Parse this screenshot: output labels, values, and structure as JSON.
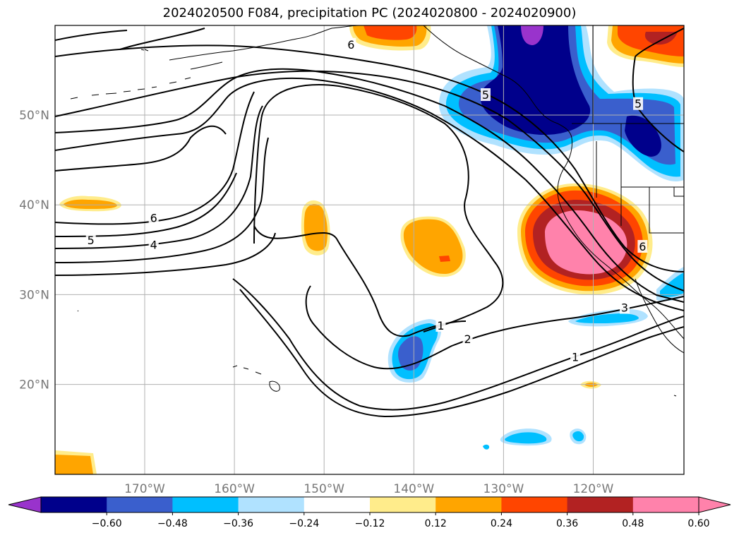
{
  "title": "2024020500 F084, precipitation PC (2024020800 - 2024020900)",
  "lat_labels": [
    {
      "label": "50°N",
      "lat": 50
    },
    {
      "label": "40°N",
      "lat": 40
    },
    {
      "label": "30°N",
      "lat": 30
    },
    {
      "label": "20°N",
      "lat": 20
    }
  ],
  "lon_labels": [
    {
      "label": "170°W",
      "lon": -170
    },
    {
      "label": "160°W",
      "lon": -160
    },
    {
      "label": "150°W",
      "lon": -150
    },
    {
      "label": "140°W",
      "lon": -140
    },
    {
      "label": "130°W",
      "lon": -130
    },
    {
      "label": "120°W",
      "lon": -120
    }
  ],
  "colorbar": {
    "colors": [
      "#9933cc",
      "#00008b",
      "#3a5fcd",
      "#00bfff",
      "#b0e2ff",
      "#ffffff",
      "#ffec8b",
      "#ffa500",
      "#ff4500",
      "#b22222",
      "#ff82ab",
      "#ff82ab"
    ],
    "tick_labels": [
      "−0.60",
      "−0.48",
      "−0.36",
      "−0.24",
      "−0.12",
      "0.12",
      "0.24",
      "0.36",
      "0.48",
      "0.60"
    ]
  },
  "contour_labels": [
    {
      "text": "6",
      "lon": -169,
      "lat": 38.5
    },
    {
      "text": "5",
      "lon": -176,
      "lat": 36
    },
    {
      "text": "4",
      "lon": -169,
      "lat": 35.5
    },
    {
      "text": "6",
      "lon": -147,
      "lat": 57.8
    },
    {
      "text": "5",
      "lon": -132,
      "lat": 52.2
    },
    {
      "text": "1",
      "lon": -137,
      "lat": 26.5
    },
    {
      "text": "2",
      "lon": -134,
      "lat": 25
    },
    {
      "text": "1",
      "lon": -122,
      "lat": 23
    },
    {
      "text": "6",
      "lon": -114.5,
      "lat": 35.3
    },
    {
      "text": "3",
      "lon": -116.5,
      "lat": 28.5
    },
    {
      "text": "5",
      "lon": -115,
      "lat": 51.2
    }
  ]
}
